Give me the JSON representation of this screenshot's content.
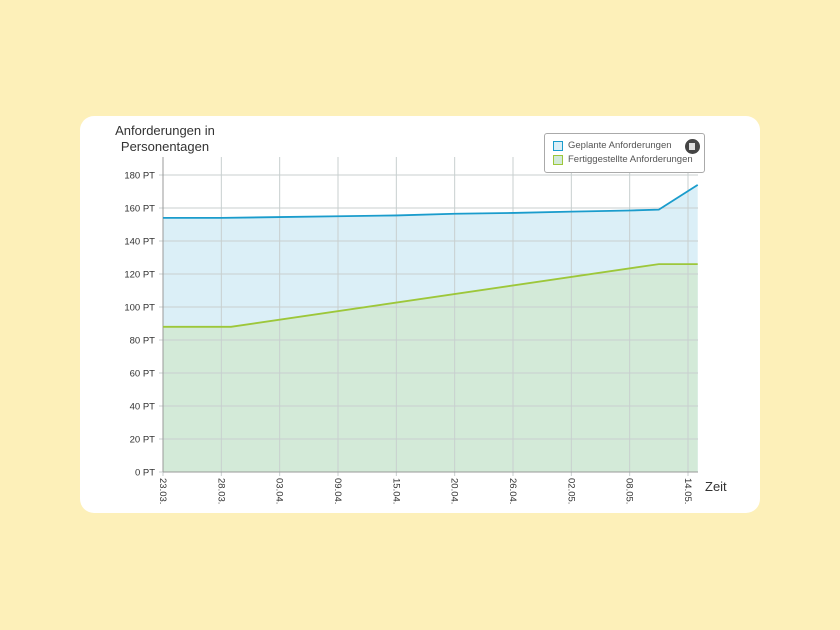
{
  "chart_data": {
    "type": "area",
    "ylabel": "Anforderungen in Personentagen",
    "xlabel": "Zeit",
    "ylim": [
      0,
      180
    ],
    "yticks": [
      "0 PT",
      "20 PT",
      "40 PT",
      "60 PT",
      "80 PT",
      "100 PT",
      "120 PT",
      "140 PT",
      "160 PT",
      "180 PT"
    ],
    "ytick_values": [
      0,
      20,
      40,
      60,
      80,
      100,
      120,
      140,
      160,
      180
    ],
    "xticks": [
      "23.03.",
      "28.03.",
      "03.04.",
      "09.04.",
      "15.04.",
      "20.04.",
      "26.04.",
      "02.05.",
      "08.05.",
      "14.05."
    ],
    "grid": true,
    "legend_placement": "top-right",
    "series": [
      {
        "name": "Geplante Anforderungen",
        "color": "#1a9ccc",
        "fill": "#dbeff7",
        "points": [
          [
            "23.03.",
            154
          ],
          [
            "28.03.",
            154
          ],
          [
            "03.04.",
            154.5
          ],
          [
            "09.04.",
            155
          ],
          [
            "15.04.",
            155.5
          ],
          [
            "20.04.",
            156.5
          ],
          [
            "26.04.",
            157
          ],
          [
            "02.05.",
            157.8
          ],
          [
            "08.05.",
            158.5
          ],
          [
            "11.05.",
            159
          ],
          [
            "15.05.",
            174
          ]
        ]
      },
      {
        "name": "Fertiggestellte Anforderungen",
        "color": "#9dc73a",
        "fill": "#d3ead8",
        "points": [
          [
            "23.03.",
            88
          ],
          [
            "29.03.",
            88
          ],
          [
            "11.05.",
            126
          ],
          [
            "15.05.",
            126
          ]
        ]
      }
    ]
  }
}
